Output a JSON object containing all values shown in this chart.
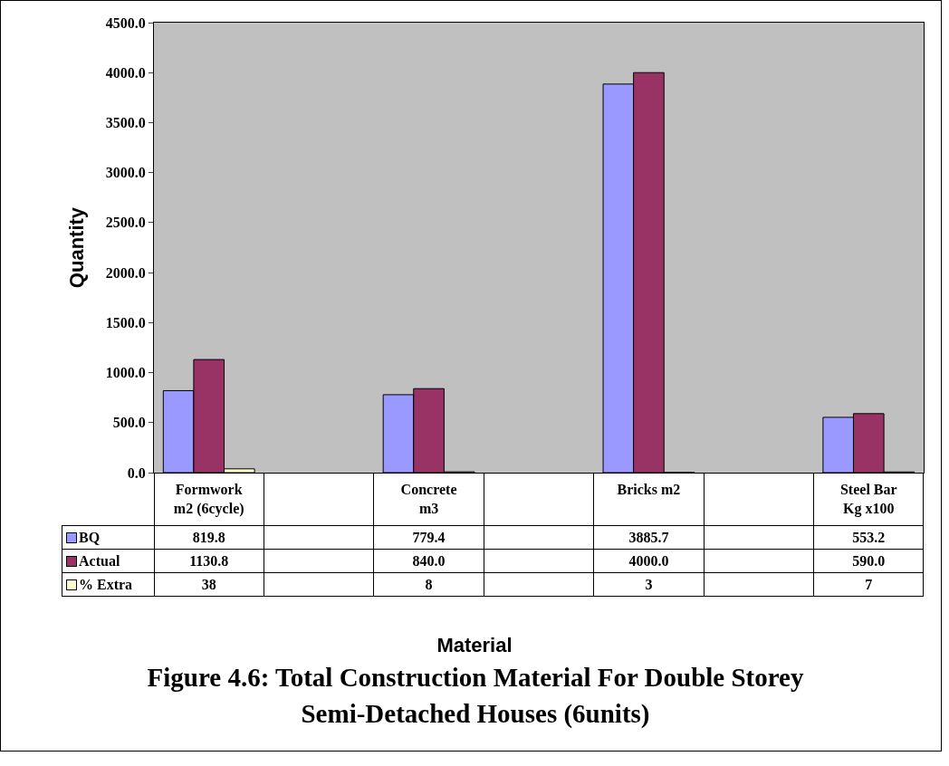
{
  "chart_data": {
    "type": "bar",
    "title": "Figure 4.6: Total Construction Material For Double Storey Semi-Detached Houses (6units)",
    "annotations": [
      "Material"
    ],
    "ylabel": "Quantity",
    "categories": [
      "Formwork m2 (6cycle)",
      null,
      "Concrete m3",
      null,
      "Bricks m2",
      null,
      "Steel Bar Kg x100"
    ],
    "series": [
      {
        "name": "BQ",
        "color": "#9999ff",
        "values": [
          819.8,
          null,
          779.4,
          null,
          3885.7,
          null,
          553.2
        ],
        "value_labels": [
          "819.8",
          null,
          "779.4",
          null,
          "3885.7",
          null,
          "553.2"
        ]
      },
      {
        "name": "Actual",
        "color": "#993366",
        "values": [
          1130.8,
          null,
          840.0,
          null,
          4000.0,
          null,
          590.0
        ],
        "value_labels": [
          "1130.8",
          null,
          "840.0",
          null,
          "4000.0",
          null,
          "590.0"
        ]
      },
      {
        "name": "% Extra",
        "color": "#ffffcc",
        "values": [
          38,
          null,
          8,
          null,
          3,
          null,
          7
        ],
        "value_labels": [
          "38",
          null,
          "8",
          null,
          "3",
          null,
          "7"
        ]
      }
    ],
    "ylim": [
      0,
      4500
    ],
    "yticks": [
      {
        "value": 0,
        "label": "0.0"
      },
      {
        "value": 500,
        "label": "500.0"
      },
      {
        "value": 1000,
        "label": "1000.0"
      },
      {
        "value": 1500,
        "label": "1500.0"
      },
      {
        "value": 2000,
        "label": "2000.0"
      },
      {
        "value": 2500,
        "label": "2500.0"
      },
      {
        "value": 3000,
        "label": "3000.0"
      },
      {
        "value": 3500,
        "label": "3500.0"
      },
      {
        "value": 4000,
        "label": "4000.0"
      },
      {
        "value": 4500,
        "label": "4500.0"
      }
    ],
    "grid": false,
    "legend": "bottom"
  }
}
